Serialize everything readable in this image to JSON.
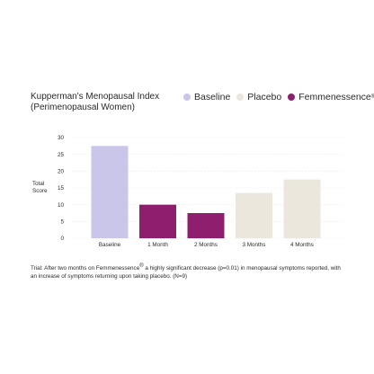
{
  "chart_data": {
    "type": "bar",
    "title_lines": [
      "Kupperman's Menopausal Index",
      "(Perimenopausal Women)"
    ],
    "ylabel_lines": [
      "Total",
      "Score"
    ],
    "categories": [
      "Baseline",
      "1 Month",
      "2 Months",
      "3 Months",
      "4 Months"
    ],
    "values": [
      27.5,
      10,
      7.5,
      13.5,
      17.5
    ],
    "bar_series": [
      "Baseline",
      "Femmenessence",
      "Femmenessence",
      "Placebo",
      "Placebo"
    ],
    "yticks": [
      0,
      5,
      10,
      15,
      20,
      25,
      30
    ],
    "ylim": [
      0,
      30
    ],
    "grid": true,
    "legend_position": "top-right",
    "legend": [
      {
        "name": "Baseline",
        "color": "#c9c6ea"
      },
      {
        "name": "Placebo",
        "color": "#ebe7dd"
      },
      {
        "name": "Femmenessence",
        "color": "#8d1f6e",
        "mark": "®"
      }
    ]
  },
  "footnote": {
    "prefix": "Trial: After two months on Femmenessence",
    "mark": "®",
    "rest": " a highly significant decrease (p=0.01) in menopausal symptoms reported, with an increase of symptoms returning upon taking placebo. (N=9)"
  }
}
